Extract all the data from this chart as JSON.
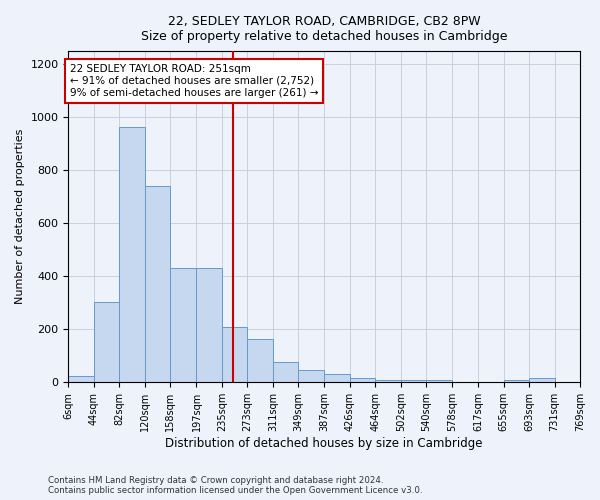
{
  "title": "22, SEDLEY TAYLOR ROAD, CAMBRIDGE, CB2 8PW",
  "subtitle": "Size of property relative to detached houses in Cambridge",
  "xlabel": "Distribution of detached houses by size in Cambridge",
  "ylabel": "Number of detached properties",
  "bar_color": "#c5d8f0",
  "bar_edge_color": "#6699cc",
  "background_color": "#eef2fb",
  "grid_color": "#c8d0e0",
  "vline_x": 251,
  "vline_color": "#cc0000",
  "annotation_text": "22 SEDLEY TAYLOR ROAD: 251sqm\n← 91% of detached houses are smaller (2,752)\n9% of semi-detached houses are larger (261) →",
  "annotation_box_color": "#ffffff",
  "annotation_border_color": "#cc0000",
  "bin_edges": [
    6,
    44,
    82,
    120,
    158,
    197,
    235,
    273,
    311,
    349,
    387,
    426,
    464,
    502,
    540,
    578,
    617,
    655,
    693,
    731,
    769
  ],
  "bar_heights": [
    25,
    305,
    962,
    742,
    430,
    430,
    210,
    165,
    75,
    48,
    30,
    15,
    10,
    10,
    10,
    0,
    0,
    10,
    15,
    0
  ],
  "ylim": [
    0,
    1250
  ],
  "yticks": [
    0,
    200,
    400,
    600,
    800,
    1000,
    1200
  ],
  "footnote1": "Contains HM Land Registry data © Crown copyright and database right 2024.",
  "footnote2": "Contains public sector information licensed under the Open Government Licence v3.0."
}
